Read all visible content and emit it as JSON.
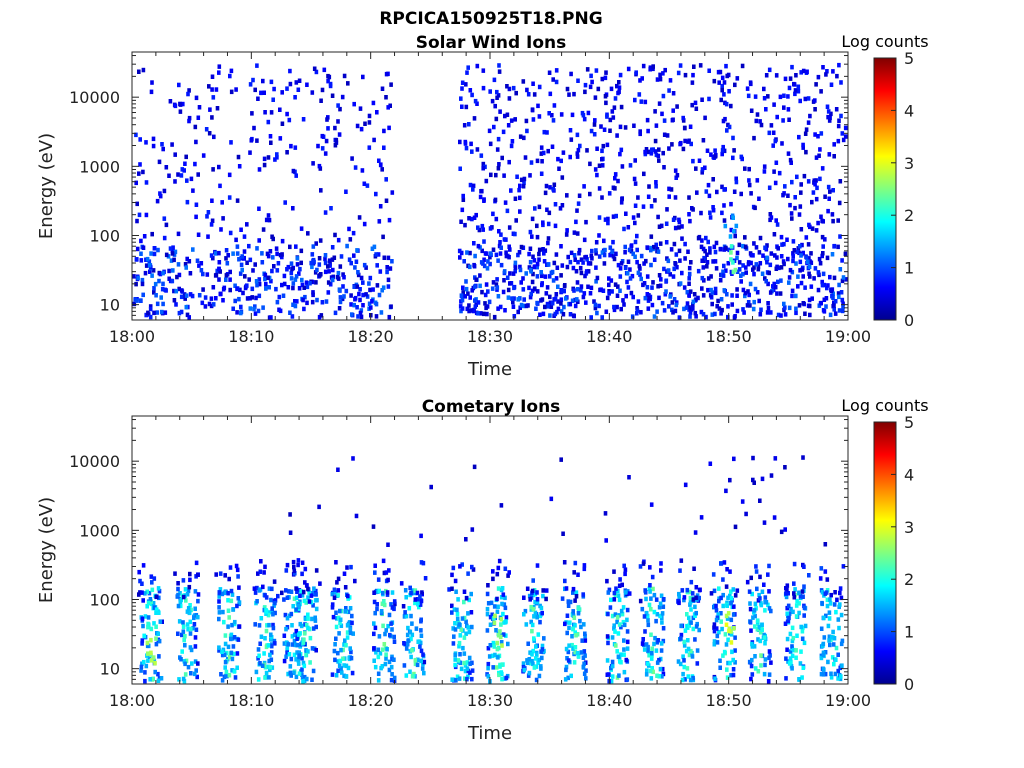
{
  "figure_title": "RPCICA150925T18.PNG",
  "colorbar": {
    "label": "Log counts",
    "ticks": [
      "0",
      "1",
      "2",
      "3",
      "4",
      "5"
    ],
    "range": [
      0,
      5
    ],
    "colormap": "jet",
    "colors": [
      "#00008f",
      "#0000ff",
      "#0080ff",
      "#00ffff",
      "#80ff80",
      "#ffff00",
      "#ff8000",
      "#ff0000",
      "#800000"
    ]
  },
  "chart_data": [
    {
      "type": "heatmap",
      "title": "Solar Wind Ions",
      "xlabel": "Time",
      "ylabel": "Energy (eV)",
      "x_ticks": [
        "18:00",
        "18:10",
        "18:20",
        "18:30",
        "18:40",
        "18:50",
        "19:00"
      ],
      "x_range_minutes": [
        0,
        60
      ],
      "y_ticks": [
        "10",
        "100",
        "1000",
        "10000"
      ],
      "y_scale": "log",
      "y_range": [
        6,
        45000
      ],
      "z_label": "Log counts",
      "z_range": [
        0,
        5
      ],
      "description_of_data": "Sparse scattered low counts (~0-1) across 10 eV-10 keV; data gap ~18:22-18:27; denser coverage 18:27-19:00; peak ~2.5 at 18:50 near 50 eV",
      "features": [
        {
          "t": 2,
          "e": 20,
          "v": 1.2
        },
        {
          "t": 15,
          "e": 30,
          "v": 1.0
        },
        {
          "t": 50,
          "e": 50,
          "v": 2.5
        },
        {
          "t": 50,
          "e": 150,
          "v": 1.5
        }
      ]
    },
    {
      "type": "heatmap",
      "title": "Cometary Ions",
      "xlabel": "Time",
      "ylabel": "Energy (eV)",
      "x_ticks": [
        "18:00",
        "18:10",
        "18:20",
        "18:30",
        "18:40",
        "18:50",
        "19:00"
      ],
      "x_range_minutes": [
        0,
        60
      ],
      "y_ticks": [
        "10",
        "100",
        "1000",
        "10000"
      ],
      "y_scale": "log",
      "y_range": [
        6,
        45000
      ],
      "z_label": "Log counts",
      "z_range": [
        0,
        5
      ],
      "description_of_data": "Periodic bursts roughly every ~3 minutes between 10-300 eV with values 1-3; occasional sparse counts up to 10 keV",
      "burst_times_minutes": [
        1.5,
        4.5,
        8,
        11,
        13.5,
        14.5,
        17.5,
        21,
        23.5,
        27.5,
        30.5,
        33.5,
        37,
        40.5,
        43.5,
        46.5,
        49.5,
        52.5,
        55.5,
        58.5
      ],
      "features": [
        {
          "t": 1.5,
          "e": 20,
          "v": 2.8
        },
        {
          "t": 30.5,
          "e": 40,
          "v": 2.8
        },
        {
          "t": 49.9,
          "e": 40,
          "v": 3.1
        }
      ]
    }
  ]
}
